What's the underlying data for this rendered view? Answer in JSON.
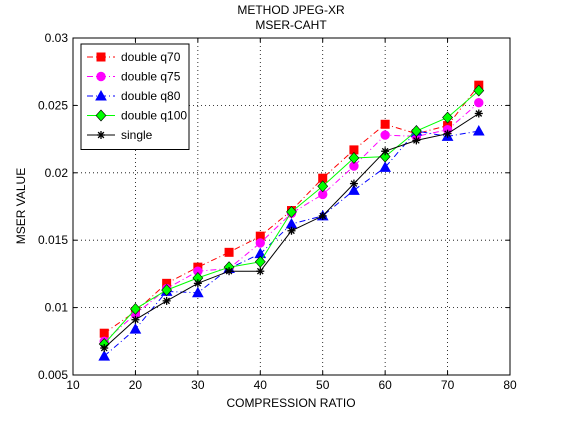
{
  "chart_data": {
    "type": "line",
    "title": "METHOD JPEG-XR",
    "subtitle": "MSER-CAHT",
    "xlabel": "COMPRESSION RATIO",
    "ylabel": "MSER VALUE",
    "xlim": [
      10,
      80
    ],
    "ylim": [
      0.005,
      0.03
    ],
    "xticks": [
      "10",
      "20",
      "30",
      "40",
      "50",
      "60",
      "70",
      "80"
    ],
    "yticks": [
      "0.005",
      "0.01",
      "0.015",
      "0.02",
      "0.025",
      "0.03"
    ],
    "grid": "dotted",
    "legend_position": "top-left",
    "x": [
      15,
      20,
      25,
      30,
      35,
      40,
      45,
      50,
      55,
      60,
      65,
      70,
      75
    ],
    "series": [
      {
        "name": "double q70",
        "color": "#ff0000",
        "marker": "square",
        "dash": "dashdot",
        "values": [
          0.0081,
          0.0097,
          0.0118,
          0.013,
          0.0141,
          0.0153,
          0.0172,
          0.0196,
          0.0217,
          0.0236,
          0.0229,
          0.0235,
          0.0265
        ]
      },
      {
        "name": "double q75",
        "color": "#ff00ff",
        "marker": "circle",
        "dash": "dashdot",
        "values": [
          0.0075,
          0.0095,
          0.0114,
          0.0127,
          0.0129,
          0.0148,
          0.017,
          0.0184,
          0.0205,
          0.0228,
          0.0227,
          0.0232,
          0.0252
        ]
      },
      {
        "name": "double q80",
        "color": "#0000ff",
        "marker": "triangle",
        "dash": "dashdot",
        "values": [
          0.0064,
          0.0084,
          0.0112,
          0.0111,
          0.0129,
          0.014,
          0.0162,
          0.0168,
          0.0187,
          0.0204,
          0.0231,
          0.0227,
          0.0231
        ]
      },
      {
        "name": "double q100",
        "color": "#00ff00",
        "marker": "diamond",
        "dash": "solid",
        "values": [
          0.0073,
          0.0099,
          0.0113,
          0.0122,
          0.013,
          0.0134,
          0.0171,
          0.019,
          0.0211,
          0.0212,
          0.0231,
          0.0241,
          0.0261
        ]
      },
      {
        "name": "single",
        "color": "#000000",
        "marker": "star",
        "dash": "solid",
        "values": [
          0.007,
          0.0091,
          0.0105,
          0.0118,
          0.0127,
          0.0127,
          0.0157,
          0.0168,
          0.0192,
          0.0216,
          0.0224,
          0.0229,
          0.0244
        ]
      }
    ]
  }
}
